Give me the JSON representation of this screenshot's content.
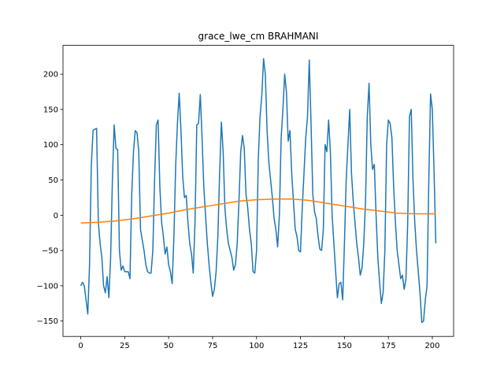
{
  "chart_data": {
    "type": "line",
    "title": "grace_lwe_cm BRAHMANI",
    "xlim": [
      -10.1,
      212.1
    ],
    "ylim": [
      -171.8,
      240.8
    ],
    "xticks": [
      0,
      25,
      50,
      75,
      100,
      125,
      150,
      175,
      200
    ],
    "yticks": [
      {
        "value": -150,
        "label": "−150"
      },
      {
        "value": -100,
        "label": "−100"
      },
      {
        "value": -50,
        "label": "−50"
      },
      0,
      50,
      100,
      150,
      200
    ],
    "grid": false,
    "series": [
      {
        "color": "#1f77b4",
        "x": [
          0,
          1,
          2,
          3,
          4,
          5,
          6,
          7,
          8,
          9,
          10,
          11,
          12,
          13,
          14,
          15,
          16,
          17,
          18,
          19,
          20,
          21,
          22,
          23,
          24,
          25,
          26,
          27,
          28,
          29,
          30,
          31,
          32,
          33,
          34,
          35,
          36,
          37,
          38,
          39,
          40,
          41,
          42,
          43,
          44,
          45,
          46,
          47,
          48,
          49,
          50,
          51,
          52,
          53,
          54,
          55,
          56,
          57,
          58,
          59,
          60,
          61,
          62,
          63,
          64,
          65,
          66,
          67,
          68,
          69,
          70,
          71,
          72,
          73,
          74,
          75,
          76,
          77,
          78,
          79,
          80,
          81,
          82,
          83,
          84,
          85,
          86,
          87,
          88,
          89,
          90,
          91,
          92,
          93,
          94,
          95,
          96,
          97,
          98,
          99,
          100,
          101,
          102,
          103,
          104,
          105,
          106,
          107,
          108,
          109,
          110,
          111,
          112,
          113,
          114,
          115,
          116,
          117,
          118,
          119,
          120,
          121,
          122,
          123,
          124,
          125,
          126,
          127,
          128,
          129,
          130,
          131,
          132,
          133,
          134,
          135,
          136,
          137,
          138,
          139,
          140,
          141,
          142,
          143,
          144,
          145,
          146,
          147,
          148,
          149,
          150,
          151,
          152,
          153,
          154,
          155,
          156,
          157,
          158,
          159,
          160,
          161,
          162,
          163,
          164,
          165,
          166,
          167,
          168,
          169,
          170,
          171,
          172,
          173,
          174,
          175,
          176,
          177,
          178,
          179,
          180,
          181,
          182,
          183,
          184,
          185,
          186,
          187,
          188,
          189,
          190,
          191,
          192,
          193,
          194,
          195,
          196,
          197,
          198,
          199,
          200,
          201,
          202
        ],
        "values": [
          -100,
          -95,
          -100,
          -120,
          -140,
          -70,
          70,
          120,
          122,
          123,
          -10,
          -40,
          -60,
          -100,
          -110,
          -87,
          -117,
          -60,
          50,
          128,
          95,
          93,
          -50,
          -78,
          -72,
          -80,
          -80,
          -80,
          -90,
          30,
          90,
          120,
          117,
          90,
          -20,
          -35,
          -50,
          -70,
          -80,
          -82,
          -82,
          -50,
          50,
          128,
          135,
          40,
          -10,
          -30,
          -55,
          -45,
          -70,
          -80,
          -97,
          -30,
          70,
          130,
          173,
          120,
          55,
          25,
          28,
          -10,
          -40,
          -55,
          -82,
          -10,
          128,
          130,
          171,
          110,
          40,
          0,
          -40,
          -70,
          -95,
          -115,
          -105,
          -80,
          -30,
          60,
          132,
          90,
          10,
          -20,
          -40,
          -50,
          -60,
          -78,
          -70,
          -40,
          20,
          90,
          113,
          95,
          30,
          10,
          -20,
          -40,
          -80,
          -82,
          -50,
          80,
          140,
          170,
          222,
          200,
          120,
          75,
          50,
          25,
          -5,
          -20,
          -45,
          0,
          110,
          150,
          200,
          175,
          105,
          120,
          60,
          20,
          -20,
          -30,
          -50,
          -52,
          10,
          60,
          110,
          140,
          220,
          130,
          30,
          5,
          -5,
          -30,
          -48,
          -50,
          -20,
          100,
          90,
          135,
          90,
          0,
          -40,
          -80,
          -117,
          -97,
          -95,
          -120,
          -40,
          50,
          100,
          150,
          60,
          20,
          -10,
          -40,
          -60,
          -85,
          -75,
          -40,
          20,
          140,
          187,
          100,
          65,
          72,
          0,
          -60,
          -95,
          -125,
          -110,
          -50,
          100,
          135,
          130,
          110,
          40,
          -10,
          -50,
          -70,
          -90,
          -85,
          -105,
          -90,
          -10,
          140,
          150,
          50,
          -10,
          -50,
          -80,
          -110,
          -152,
          -150,
          -120,
          -100,
          50,
          172,
          150,
          60,
          -40
        ]
      },
      {
        "color": "#ff7f0e",
        "x": [
          0,
          10,
          20,
          30,
          40,
          50,
          60,
          70,
          80,
          90,
          100,
          110,
          120,
          130,
          140,
          150,
          160,
          170,
          180,
          190,
          200,
          202
        ],
        "values": [
          -11,
          -10,
          -8,
          -5,
          -1,
          3,
          8,
          12,
          16,
          20,
          22,
          23,
          23,
          21,
          17,
          13,
          9,
          6,
          3,
          2,
          2,
          2
        ]
      }
    ]
  }
}
